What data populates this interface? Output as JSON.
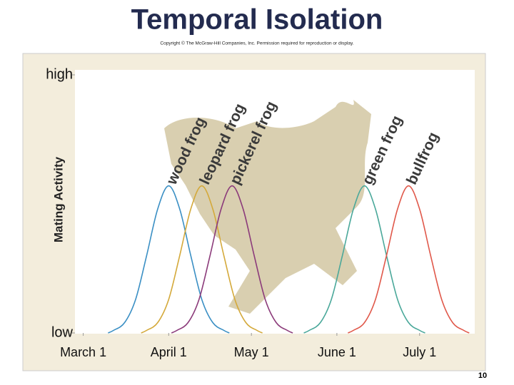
{
  "chart_data": {
    "type": "line",
    "title": "Temporal Isolation",
    "subtitle": "Copyright © The McGraw-Hill Companies, Inc. Permission required for reproduction or display.",
    "y_label": "Mating Activity",
    "page_number": "10",
    "xlim": [
      -3,
      142
    ],
    "ylim": [
      0,
      1
    ],
    "xticks": [
      {
        "value": 0,
        "label": "March 1"
      },
      {
        "value": 31,
        "label": "April 1"
      },
      {
        "value": 61,
        "label": "May 1"
      },
      {
        "value": 92,
        "label": "June 1"
      },
      {
        "value": 122,
        "label": "July 1"
      }
    ],
    "yticks": [
      {
        "value": 0,
        "label": "low"
      },
      {
        "value": 1,
        "label": "high"
      }
    ],
    "grid": false,
    "series": [
      {
        "name": "wood frog",
        "color": "#3a8fc4",
        "x": [
          9,
          11,
          15,
          19,
          23,
          27,
          31,
          35,
          39,
          43,
          47,
          51,
          53
        ],
        "values": [
          0,
          0.01,
          0.04,
          0.13,
          0.3,
          0.48,
          0.57,
          0.48,
          0.3,
          0.13,
          0.04,
          0.01,
          0
        ]
      },
      {
        "name": "leopard frog",
        "color": "#d4a93a",
        "x": [
          21,
          23,
          27,
          31,
          35,
          39,
          43,
          47,
          51,
          55,
          59,
          63,
          65
        ],
        "values": [
          0,
          0.01,
          0.04,
          0.13,
          0.3,
          0.48,
          0.57,
          0.48,
          0.3,
          0.13,
          0.04,
          0.01,
          0
        ]
      },
      {
        "name": "pickerel frog",
        "color": "#8b3a7a",
        "x": [
          32,
          34,
          38,
          42,
          46,
          50,
          54,
          58,
          62,
          66,
          70,
          74,
          76
        ],
        "values": [
          0,
          0.01,
          0.04,
          0.13,
          0.3,
          0.48,
          0.57,
          0.48,
          0.3,
          0.13,
          0.04,
          0.01,
          0
        ]
      },
      {
        "name": "green frog",
        "color": "#4aa89a",
        "x": [
          80,
          82,
          86,
          90,
          94,
          98,
          102,
          106,
          110,
          114,
          118,
          122,
          124
        ],
        "values": [
          0,
          0.01,
          0.04,
          0.13,
          0.3,
          0.48,
          0.57,
          0.48,
          0.3,
          0.13,
          0.04,
          0.01,
          0
        ]
      },
      {
        "name": "bullfrog",
        "color": "#e0584a",
        "x": [
          96,
          98,
          102,
          106,
          110,
          114,
          118,
          122,
          126,
          130,
          134,
          138,
          140
        ],
        "values": [
          0,
          0.01,
          0.04,
          0.13,
          0.3,
          0.48,
          0.57,
          0.48,
          0.3,
          0.13,
          0.04,
          0.01,
          0
        ]
      }
    ]
  }
}
